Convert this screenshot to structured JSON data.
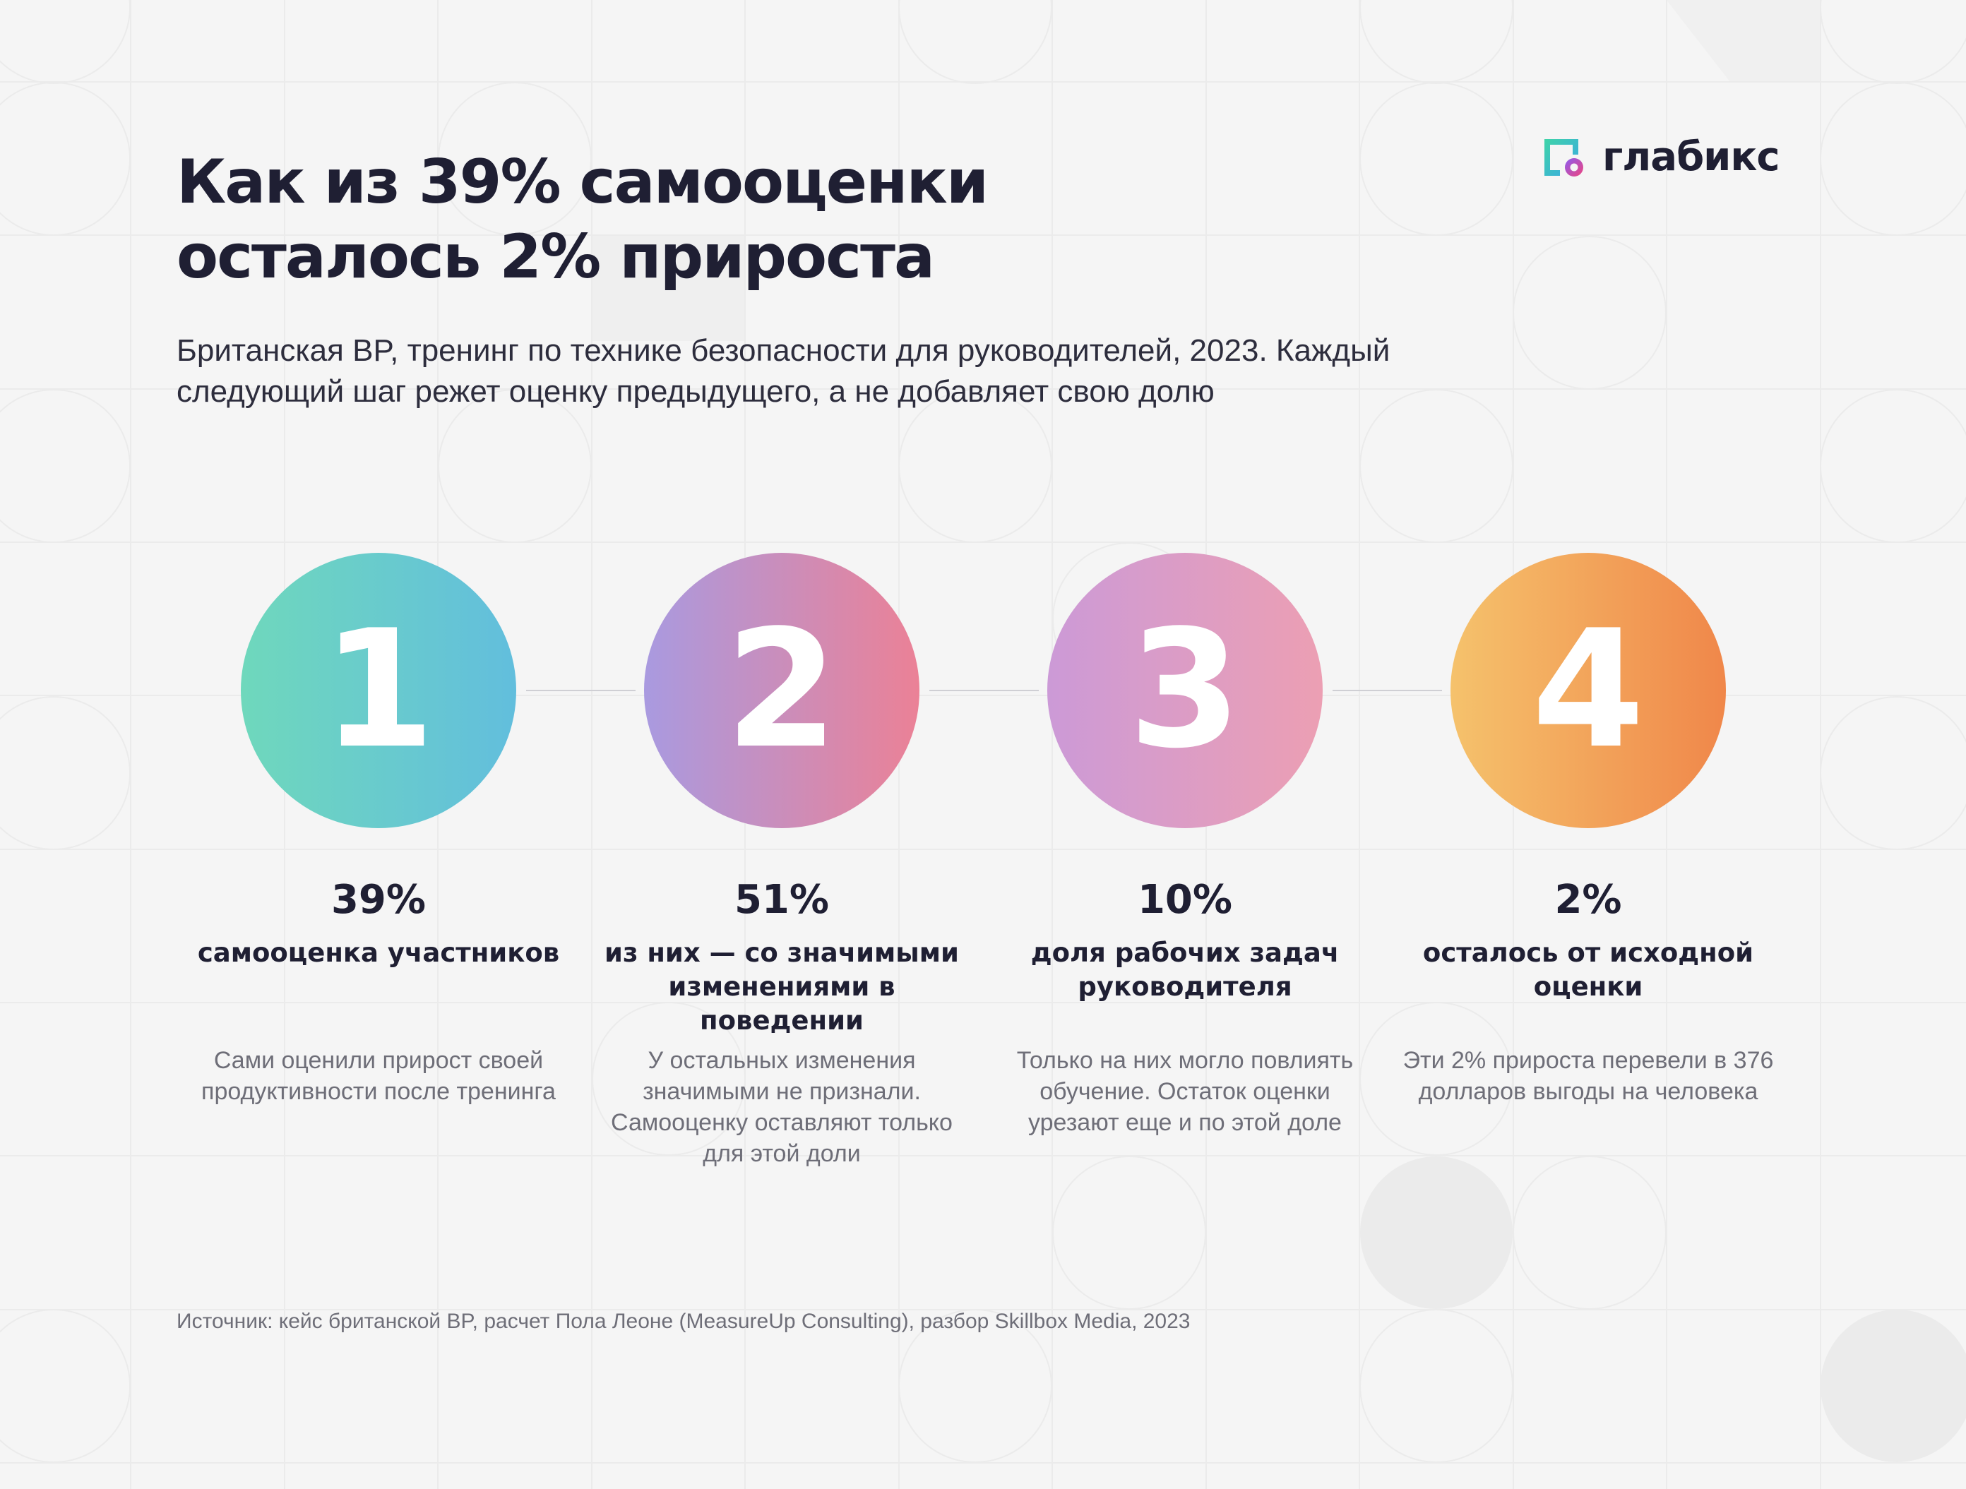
{
  "brand": {
    "name": "глабикс",
    "logo_icon": "glabix-logo-icon"
  },
  "header": {
    "title_line1": "Как из 39% самооценки",
    "title_line2": "осталось 2% прироста",
    "subtitle": "Британская BP, тренинг по технике безопасности для руководителей, 2023. Каждый следующий шаг режет оценку предыдущего, а не добавляет свою долю"
  },
  "steps": [
    {
      "number": "1",
      "percent": "39%",
      "label": "самооценка участников",
      "description": "Сами оценили прирост своей продуктивности после тренинга",
      "gradient": [
        "#6fd8bc",
        "#62bedd"
      ]
    },
    {
      "number": "2",
      "percent": "51%",
      "label": "из них — со значимыми изменениями в поведении",
      "description": "У остальных изменения значимыми не признали. Самооценку оставляют только для этой доли",
      "gradient": [
        "#a99ae0",
        "#eb8196"
      ]
    },
    {
      "number": "3",
      "percent": "10%",
      "label": "доля рабочих задач руководителя",
      "description": "Только на них могло повлиять обучение. Остаток оценки урезают еще и по этой доле",
      "gradient": [
        "#cc9ad7",
        "#ec9fb3"
      ]
    },
    {
      "number": "4",
      "percent": "2%",
      "label": "осталось от исходной оценки",
      "description": "Эти 2% прироста перевели в 376 долларов выгоды на человека",
      "gradient": [
        "#f5c26c",
        "#f0874a"
      ]
    }
  ],
  "footer": {
    "source": "Источник: кейс британской BP, расчет Пола Леоне (MeasureUp Consulting), разбор Skillbox Media, 2023"
  }
}
